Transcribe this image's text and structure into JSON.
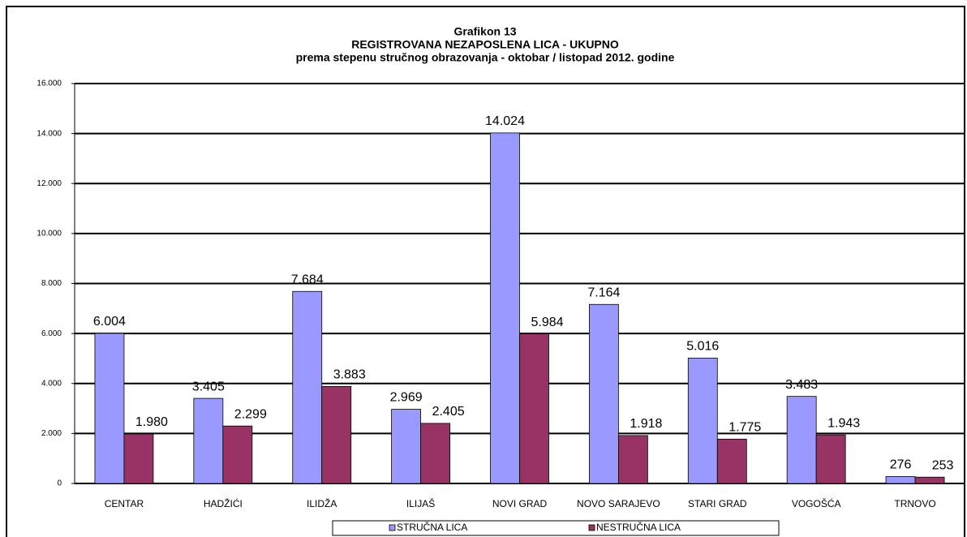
{
  "chart_data": {
    "type": "bar",
    "title": "Grafikon 13",
    "subtitle": [
      "REGISTROVANA NEZAPOSLENA LICA - UKUPNO",
      "prema stepenu stručnog obrazovanja - oktobar / listopad 2012. godine"
    ],
    "categories": [
      "CENTAR",
      "HADŽIĆI",
      "ILIDŽA",
      "ILIJAŠ",
      "NOVI GRAD",
      "NOVO SARAJEVO",
      "STARI GRAD",
      "VOGOŠĆA",
      "TRNOVO"
    ],
    "series": [
      {
        "name": "STRUČNA LICA",
        "color": "#9999ff",
        "values": [
          6004,
          3405,
          7684,
          2969,
          14024,
          7164,
          5016,
          3483,
          276
        ],
        "value_labels": [
          "6.004",
          "3.405",
          "7.684",
          "2.969",
          "14.024",
          "7.164",
          "5.016",
          "3.483",
          "276"
        ]
      },
      {
        "name": "NESTRUČNA LICA",
        "color": "#993366",
        "values": [
          1980,
          2299,
          3883,
          2405,
          5984,
          1918,
          1775,
          1943,
          253
        ],
        "value_labels": [
          "1.980",
          "2.299",
          "3.883",
          "2.405",
          "5.984",
          "1.918",
          "1.775",
          "1.943",
          "253"
        ]
      }
    ],
    "ylim": [
      0,
      16000
    ],
    "yticks": [
      0,
      {
        "value": 2000,
        "label": "2.000"
      },
      {
        "value": 4000,
        "label": "4.000"
      },
      {
        "value": 6000,
        "label": "6.000"
      },
      {
        "value": 8000,
        "label": "8.000"
      },
      {
        "value": 10000,
        "label": "10.000"
      },
      {
        "value": 12000,
        "label": "12.000"
      },
      {
        "value": 14000,
        "label": "14.000"
      },
      {
        "value": 16000,
        "label": "16.000"
      }
    ],
    "grid": true
  }
}
